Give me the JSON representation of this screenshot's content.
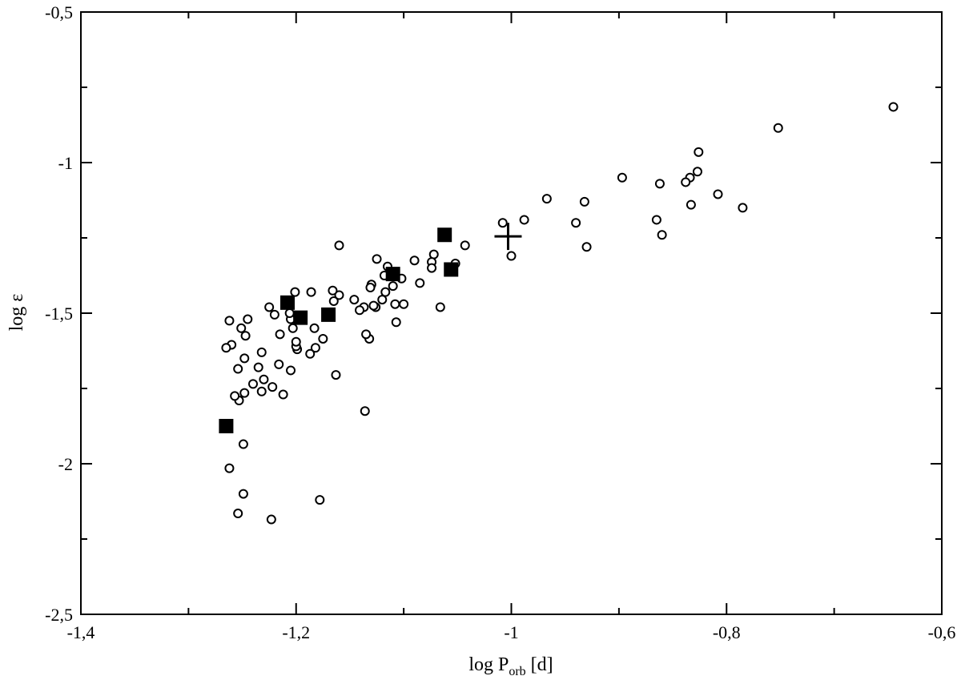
{
  "chart_data": {
    "type": "scatter",
    "title": "",
    "xlabel": {
      "main": "log P",
      "sub": "orb",
      "unit": " [d]"
    },
    "ylabel": {
      "main": "log ",
      "symbol": "ε"
    },
    "xlim": [
      -1.4,
      -0.6
    ],
    "ylim": [
      -2.5,
      -0.5
    ],
    "grid": false,
    "x_ticks": [
      -1.4,
      -1.2,
      -1.0,
      -0.8,
      -0.6
    ],
    "x_tick_labels": [
      "-1,4",
      "-1,2",
      "-1",
      "-0,8",
      "-0,6"
    ],
    "y_ticks": [
      -2.5,
      -2.0,
      -1.5,
      -1.0,
      -0.5
    ],
    "y_tick_labels": [
      "-2,5",
      "-2",
      "-1,5",
      "-1",
      "-0,5"
    ],
    "series": [
      {
        "marker": "open-circle",
        "points": [
          [
            -0.645,
            -0.815
          ],
          [
            -0.752,
            -0.885
          ],
          [
            -0.785,
            -1.15
          ],
          [
            -0.808,
            -1.105
          ],
          [
            -0.826,
            -0.965
          ],
          [
            -0.827,
            -1.03
          ],
          [
            -0.834,
            -1.05
          ],
          [
            -0.838,
            -1.065
          ],
          [
            -0.833,
            -1.14
          ],
          [
            -0.86,
            -1.24
          ],
          [
            -0.862,
            -1.07
          ],
          [
            -0.865,
            -1.19
          ],
          [
            -0.897,
            -1.05
          ],
          [
            -0.93,
            -1.28
          ],
          [
            -0.932,
            -1.13
          ],
          [
            -0.94,
            -1.2
          ],
          [
            -0.967,
            -1.12
          ],
          [
            -0.988,
            -1.19
          ],
          [
            -1.0,
            -1.31
          ],
          [
            -1.008,
            -1.2
          ],
          [
            -1.043,
            -1.275
          ],
          [
            -1.052,
            -1.335
          ],
          [
            -1.066,
            -1.48
          ],
          [
            -1.072,
            -1.305
          ],
          [
            -1.074,
            -1.33
          ],
          [
            -1.074,
            -1.35
          ],
          [
            -1.085,
            -1.4
          ],
          [
            -1.09,
            -1.325
          ],
          [
            -1.1,
            -1.47
          ],
          [
            -1.102,
            -1.385
          ],
          [
            -1.107,
            -1.53
          ],
          [
            -1.108,
            -1.47
          ],
          [
            -1.11,
            -1.41
          ],
          [
            -1.115,
            -1.345
          ],
          [
            -1.117,
            -1.43
          ],
          [
            -1.118,
            -1.375
          ],
          [
            -1.12,
            -1.455
          ],
          [
            -1.125,
            -1.32
          ],
          [
            -1.126,
            -1.48
          ],
          [
            -1.128,
            -1.475
          ],
          [
            -1.13,
            -1.405
          ],
          [
            -1.131,
            -1.415
          ],
          [
            -1.132,
            -1.585
          ],
          [
            -1.135,
            -1.57
          ],
          [
            -1.136,
            -1.825
          ],
          [
            -1.137,
            -1.48
          ],
          [
            -1.141,
            -1.49
          ],
          [
            -1.146,
            -1.455
          ],
          [
            -1.16,
            -1.275
          ],
          [
            -1.16,
            -1.44
          ],
          [
            -1.163,
            -1.705
          ],
          [
            -1.165,
            -1.46
          ],
          [
            -1.166,
            -1.425
          ],
          [
            -1.175,
            -1.585
          ],
          [
            -1.178,
            -2.12
          ],
          [
            -1.182,
            -1.615
          ],
          [
            -1.183,
            -1.55
          ],
          [
            -1.186,
            -1.43
          ],
          [
            -1.187,
            -1.635
          ],
          [
            -1.199,
            -1.62
          ],
          [
            -1.2,
            -1.61
          ],
          [
            -1.2,
            -1.595
          ],
          [
            -1.201,
            -1.43
          ],
          [
            -1.203,
            -1.55
          ],
          [
            -1.205,
            -1.52
          ],
          [
            -1.205,
            -1.69
          ],
          [
            -1.206,
            -1.5
          ],
          [
            -1.212,
            -1.77
          ],
          [
            -1.215,
            -1.57
          ],
          [
            -1.216,
            -1.67
          ],
          [
            -1.22,
            -1.505
          ],
          [
            -1.222,
            -1.745
          ],
          [
            -1.223,
            -2.185
          ],
          [
            -1.225,
            -1.48
          ],
          [
            -1.23,
            -1.72
          ],
          [
            -1.232,
            -1.63
          ],
          [
            -1.232,
            -1.76
          ],
          [
            -1.235,
            -1.68
          ],
          [
            -1.24,
            -1.735
          ],
          [
            -1.245,
            -1.52
          ],
          [
            -1.247,
            -1.575
          ],
          [
            -1.248,
            -1.65
          ],
          [
            -1.248,
            -1.765
          ],
          [
            -1.249,
            -1.935
          ],
          [
            -1.249,
            -2.1
          ],
          [
            -1.251,
            -1.55
          ],
          [
            -1.253,
            -1.79
          ],
          [
            -1.254,
            -1.685
          ],
          [
            -1.254,
            -2.165
          ],
          [
            -1.257,
            -1.775
          ],
          [
            -1.26,
            -1.605
          ],
          [
            -1.262,
            -1.525
          ],
          [
            -1.262,
            -2.015
          ],
          [
            -1.265,
            -1.615
          ]
        ]
      },
      {
        "marker": "filled-square",
        "points": [
          [
            -1.265,
            -1.875
          ],
          [
            -1.208,
            -1.465
          ],
          [
            -1.196,
            -1.515
          ],
          [
            -1.17,
            -1.505
          ],
          [
            -1.11,
            -1.37
          ],
          [
            -1.062,
            -1.24
          ],
          [
            -1.056,
            -1.355
          ]
        ]
      },
      {
        "marker": "plus",
        "points": [
          [
            -1.003,
            -1.245
          ]
        ]
      }
    ]
  }
}
